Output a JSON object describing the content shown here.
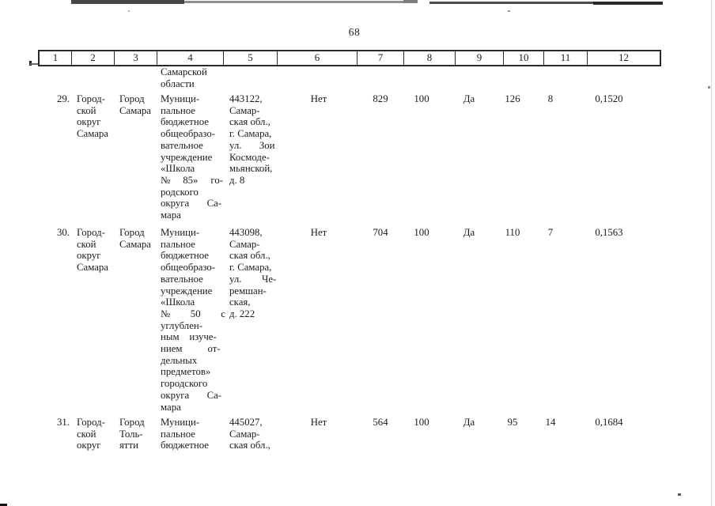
{
  "page": {
    "number": "68"
  },
  "table": {
    "header_columns": [
      "1",
      "2",
      "3",
      "4",
      "5",
      "6",
      "7",
      "8",
      "9",
      "10",
      "11",
      "12"
    ],
    "continuation": {
      "institution": "Самарской\nобласти"
    },
    "rows": [
      {
        "index": "29.",
        "district": "Город-\nской\nокруг\nСамара",
        "city": "Город\nСамара",
        "institution": "Муници-\nпальное\nбюджетное\nобщеобразо-\nвательное\nучреждение\n«Школа\n№     85»     го-\nродского\nокруга       Са-\nмара",
        "address": "443122,\nСамар-\nская обл.,\nг. Самара,\nул.       Зои\nКосмоде-\nмьянской,\nд. 8",
        "c6": "Нет",
        "c7": "829",
        "c8": "100",
        "c9": "Да",
        "c10": "126",
        "c11": "8",
        "c12": "0,1520"
      },
      {
        "index": "30.",
        "district": "Город-\nской\nокруг\nСамара",
        "city": "Город\nСамара",
        "institution": "Муници-\nпальное\nбюджетное\nобщеобразо-\nвательное\nучреждение\n«Школа\n№        50        с\nуглублен-\nным    изуче-\nнием          от-\nдельных\nпредметов»\nгородского\nокруга       Са-\nмара",
        "address": "443098,\nСамар-\nская обл.,\nг. Самара,\nул.        Че-\nремшан-\nская,\nд. 222",
        "c6": "Нет",
        "c7": "704",
        "c8": "100",
        "c9": "Да",
        "c10": "110",
        "c11": "7",
        "c12": "0,1563"
      },
      {
        "index": "31.",
        "district": "Город-\nской\nокруг",
        "city": "Город\nТоль-\nятти",
        "institution": "Муници-\nпальное\nбюджетное",
        "address": "445027,\nСамар-\nская обл.,",
        "c6": "Нет",
        "c7": "564",
        "c8": "100",
        "c9": "Да",
        "c10": "95",
        "c11": "14",
        "c12": "0,1684"
      }
    ]
  }
}
